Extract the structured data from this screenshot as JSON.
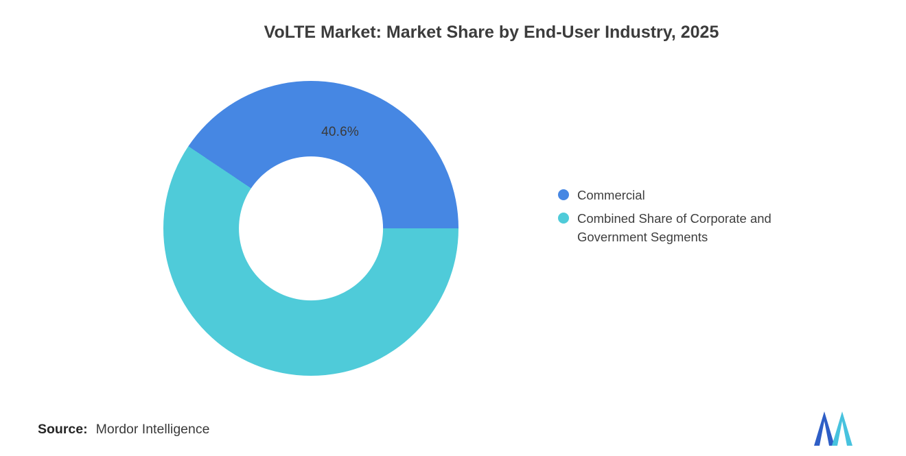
{
  "title": "VoLTE Market: Market Share by End-User Industry, 2025",
  "chart_data": {
    "type": "pie",
    "subtype": "donut",
    "title": "VoLTE Market: Market Share by End-User Industry, 2025",
    "inner_radius_ratio": 0.488,
    "legend_position": "right",
    "series": [
      {
        "name": "Commercial",
        "value": 40.6,
        "color": "#4687E3",
        "data_label": "40.6%"
      },
      {
        "name": "Combined Share of Corporate and Government Segments",
        "value": 59.4,
        "color": "#4FCBD9",
        "data_label": ""
      }
    ]
  },
  "legend": {
    "items": [
      {
        "label": "Commercial",
        "color": "#4687E3"
      },
      {
        "label": "Combined Share of Corporate and Government Segments",
        "color": "#4FCBD9"
      }
    ]
  },
  "footer": {
    "source_label": "Source:",
    "source_value": "Mordor Intelligence"
  },
  "logo": {
    "name": "mordor-intelligence-logo",
    "color_primary": "#2E5EC6",
    "color_secondary": "#47C2DE"
  }
}
